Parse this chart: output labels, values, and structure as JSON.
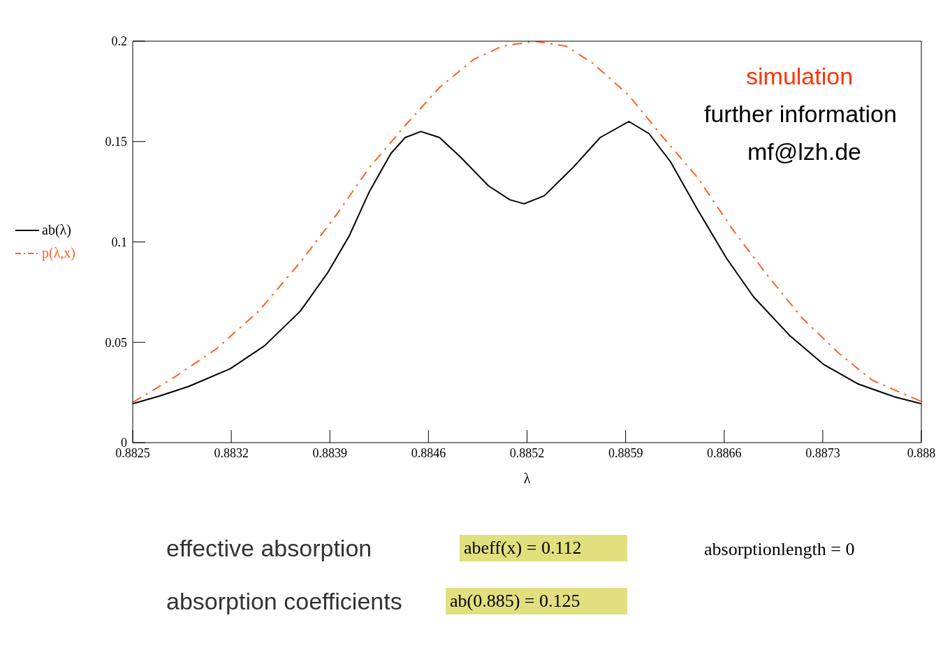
{
  "chart_data": {
    "type": "line",
    "xlabel": "λ",
    "xlim": [
      0.8825,
      0.888
    ],
    "xticks": [
      {
        "value": 0.8825,
        "label": "0.8825"
      },
      {
        "value": 0.8831875,
        "label": "0.8832"
      },
      {
        "value": 0.883875,
        "label": "0.8839"
      },
      {
        "value": 0.8845625,
        "label": "0.8846"
      },
      {
        "value": 0.88525,
        "label": "0.8852"
      },
      {
        "value": 0.8859375,
        "label": "0.8859"
      },
      {
        "value": 0.886625,
        "label": "0.8866"
      },
      {
        "value": 0.8873125,
        "label": "0.8873"
      },
      {
        "value": 0.888,
        "label": "0.888"
      }
    ],
    "ylim": [
      0,
      0.2
    ],
    "yticks": [
      0,
      0.05,
      0.1,
      0.15,
      0.2
    ],
    "grid": false,
    "legend": "left",
    "marker": "none",
    "series": [
      {
        "name": "ab(λ)",
        "color": "#000000",
        "line_style": "solid",
        "x": [
          0.8825,
          0.88269,
          0.88289,
          0.88318,
          0.88342,
          0.88367,
          0.88386,
          0.88401,
          0.88415,
          0.8843,
          0.8844,
          0.88451,
          0.88464,
          0.88479,
          0.88498,
          0.88513,
          0.88523,
          0.88537,
          0.88557,
          0.88576,
          0.88596,
          0.8861,
          0.88625,
          0.88644,
          0.88664,
          0.88683,
          0.88708,
          0.88732,
          0.88756,
          0.88781,
          0.888
        ],
        "values": [
          0.0194,
          0.0233,
          0.028,
          0.0368,
          0.0483,
          0.0656,
          0.0847,
          0.103,
          0.125,
          0.144,
          0.152,
          0.155,
          0.152,
          0.142,
          0.128,
          0.121,
          0.119,
          0.123,
          0.137,
          0.152,
          0.16,
          0.154,
          0.14,
          0.116,
          0.092,
          0.0726,
          0.0535,
          0.0389,
          0.0292,
          0.0229,
          0.0194
        ]
      },
      {
        "name": "p(λ,x)",
        "color": "#ff6020",
        "line_style": "dashed",
        "x": [
          0.8825,
          0.88279,
          0.88308,
          0.88338,
          0.88367,
          0.88391,
          0.88415,
          0.8844,
          0.88464,
          0.88488,
          0.88508,
          0.8853,
          0.88552,
          0.88571,
          0.88596,
          0.8862,
          0.88644,
          0.88669,
          0.88693,
          0.88717,
          0.88742,
          0.88766,
          0.888
        ],
        "values": [
          0.02,
          0.0326,
          0.0465,
          0.0656,
          0.09,
          0.1125,
          0.137,
          0.158,
          0.177,
          0.191,
          0.1976,
          0.2,
          0.1976,
          0.189,
          0.173,
          0.152,
          0.132,
          0.1056,
          0.083,
          0.062,
          0.0448,
          0.031,
          0.0205
        ]
      }
    ],
    "annotations": [
      "simulation",
      "further information",
      "mf@lzh.de",
      "effective absorption",
      "abeff(x) = 0.112",
      "absorptionlength = 0",
      "absorption coefficients",
      "ab(0.885) = 0.125"
    ]
  }
}
